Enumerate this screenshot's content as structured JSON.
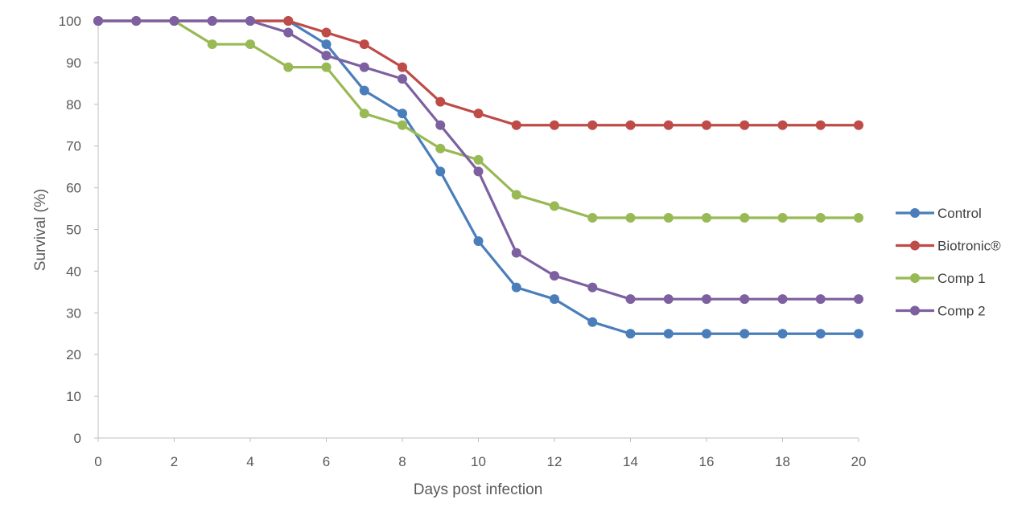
{
  "chart_data": {
    "type": "line",
    "title": "",
    "xlabel": "Days post infection",
    "ylabel": "Survival (%)",
    "xlim": [
      0,
      20
    ],
    "ylim": [
      0,
      100
    ],
    "x_ticks": [
      0,
      2,
      4,
      6,
      8,
      10,
      12,
      14,
      16,
      18,
      20
    ],
    "y_ticks": [
      0,
      10,
      20,
      30,
      40,
      50,
      60,
      70,
      80,
      90,
      100
    ],
    "grid": false,
    "legend_position": "right",
    "x": [
      0,
      1,
      2,
      3,
      4,
      5,
      6,
      7,
      8,
      9,
      10,
      11,
      12,
      13,
      14,
      15,
      16,
      17,
      18,
      19,
      20
    ],
    "series": [
      {
        "name": "Control",
        "color": "#4a7ebb",
        "values": [
          100,
          100,
          100,
          100,
          100,
          100,
          94.4,
          83.3,
          77.8,
          63.9,
          47.2,
          36.1,
          33.3,
          27.8,
          25,
          25,
          25,
          25,
          25,
          25,
          25
        ]
      },
      {
        "name": "Biotronic®",
        "color": "#be4b48",
        "values": [
          100,
          100,
          100,
          100,
          100,
          100,
          97.2,
          94.4,
          88.9,
          80.6,
          77.8,
          75,
          75,
          75,
          75,
          75,
          75,
          75,
          75,
          75,
          75
        ]
      },
      {
        "name": "Comp 1",
        "color": "#98b954",
        "values": [
          100,
          100,
          100,
          94.4,
          94.4,
          88.9,
          88.9,
          77.8,
          75,
          69.4,
          66.7,
          58.3,
          55.6,
          52.8,
          52.8,
          52.8,
          52.8,
          52.8,
          52.8,
          52.8,
          52.8
        ]
      },
      {
        "name": "Comp 2",
        "color": "#7d60a0",
        "values": [
          100,
          100,
          100,
          100,
          100,
          97.2,
          91.7,
          88.9,
          86.1,
          75,
          63.9,
          44.4,
          38.9,
          36.1,
          33.3,
          33.3,
          33.3,
          33.3,
          33.3,
          33.3,
          33.3
        ]
      }
    ]
  },
  "axis": {
    "color": "#bfbfbf"
  }
}
